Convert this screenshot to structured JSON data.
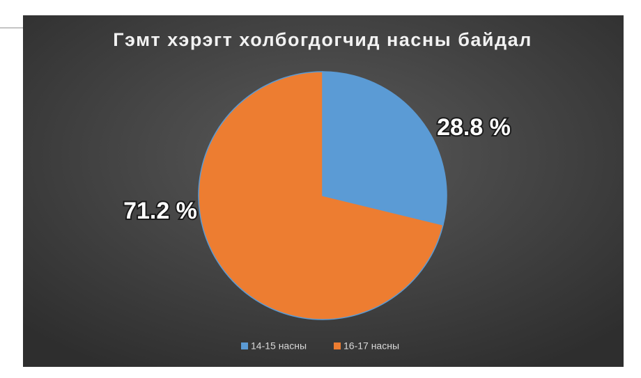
{
  "chart_data": {
    "type": "pie",
    "title": "Гэмт хэрэгт холбогдогчид насны байдал",
    "categories": [
      "14-15 насны",
      "16-17 насны"
    ],
    "values": [
      28.8,
      71.2
    ],
    "value_labels": [
      "28.8 %",
      "71.2 %"
    ],
    "colors": [
      "#5b9bd5",
      "#ed7d31"
    ],
    "legend": "bottom"
  }
}
